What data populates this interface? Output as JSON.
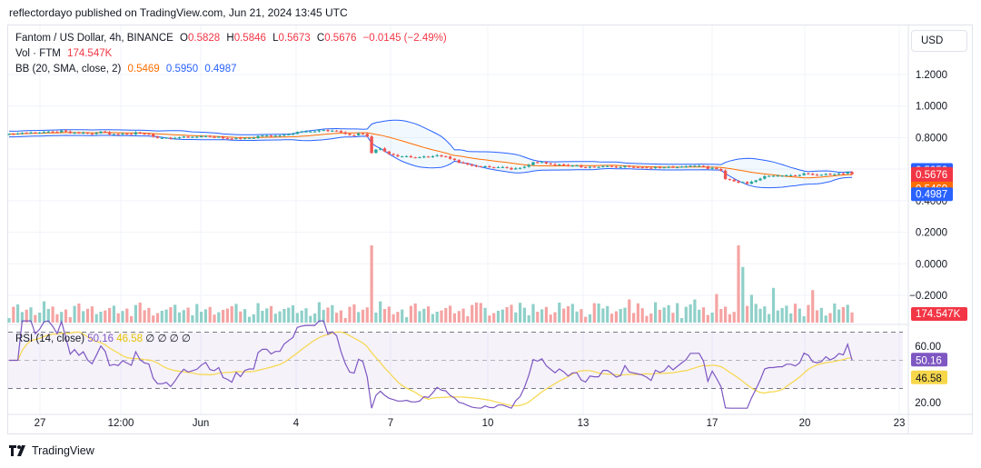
{
  "header": {
    "published_by": "reflectordayo published on TradingView.com, Jun 21, 2024 13:45 UTC"
  },
  "legend": {
    "symbol": "Fantom / US Dollar, 4h, BINANCE",
    "o_label": "O",
    "o_value": "0.5828",
    "h_label": "H",
    "h_value": "0.5846",
    "l_label": "L",
    "l_value": "0.5673",
    "c_label": "C",
    "c_value": "0.5676",
    "change": "−0.0145 (−2.49%)",
    "vol_label": "Vol · FTM",
    "vol_value": "174.547K",
    "bb_label": "BB (20, SMA, close, 2)",
    "bb_basis": "0.5469",
    "bb_upper": "0.5950",
    "bb_lower": "0.4987",
    "rsi_label": "RSI (14, close)",
    "rsi_value": "50.16",
    "rsi_ma": "46.58",
    "rsi_extra": "∅ ∅ ∅ ∅"
  },
  "toolbar": {
    "currency_button": "USD"
  },
  "brand": {
    "name": "TradingView"
  },
  "colors": {
    "up": "#26a69a",
    "down": "#ef5350",
    "bb_band": "#2962ff",
    "bb_basis": "#ff6d00",
    "rsi": "#7e57c2",
    "rsi_ma": "#f7d74a",
    "vol_up": "#8fd0c9",
    "vol_down": "#f5a3a3"
  },
  "chart_data": {
    "type": "candlestick",
    "symbol": "FTMUSD",
    "timeframe": "4h",
    "price_axis": {
      "ticks": [
        "1.2000",
        "1.0000",
        "0.8000",
        "0.6000",
        "0.4000",
        "0.2000",
        "0.0000",
        "−0.2000"
      ],
      "ylim": [
        -0.3,
        1.35
      ]
    },
    "time_axis": {
      "tick_labels": [
        "27",
        "12:00",
        "Jun",
        "4",
        "7",
        "10",
        "13",
        "17",
        "20",
        "23"
      ]
    },
    "price_labels": {
      "bb_upper": "0.5950",
      "last_price": "0.5676",
      "countdown": "02:14:09",
      "bb_basis": "0.5469",
      "bb_lower": "0.4987",
      "volume": "174.547K"
    },
    "close": [
      0.823,
      0.822,
      0.825,
      0.83,
      0.829,
      0.832,
      0.829,
      0.831,
      0.835,
      0.838,
      0.836,
      0.834,
      0.845,
      0.838,
      0.828,
      0.832,
      0.828,
      0.831,
      0.825,
      0.822,
      0.829,
      0.838,
      0.834,
      0.821,
      0.822,
      0.821,
      0.825,
      0.823,
      0.821,
      0.833,
      0.826,
      0.823,
      0.822,
      0.806,
      0.798,
      0.798,
      0.799,
      0.793,
      0.797,
      0.802,
      0.806,
      0.803,
      0.804,
      0.805,
      0.808,
      0.81,
      0.804,
      0.803,
      0.805,
      0.796,
      0.794,
      0.791,
      0.797,
      0.793,
      0.797,
      0.798,
      0.798,
      0.81,
      0.813,
      0.813,
      0.81,
      0.812,
      0.812,
      0.818,
      0.821,
      0.824,
      0.836,
      0.838,
      0.839,
      0.839,
      0.839,
      0.846,
      0.848,
      0.841,
      0.844,
      0.842,
      0.833,
      0.824,
      0.816,
      0.815,
      0.826,
      0.824,
      0.807,
      0.703,
      0.724,
      0.731,
      0.712,
      0.696,
      0.689,
      0.681,
      0.681,
      0.682,
      0.675,
      0.674,
      0.675,
      0.68,
      0.677,
      0.682,
      0.688,
      0.681,
      0.679,
      0.666,
      0.658,
      0.642,
      0.638,
      0.629,
      0.621,
      0.618,
      0.616,
      0.618,
      0.612,
      0.611,
      0.613,
      0.613,
      0.608,
      0.599,
      0.605,
      0.608,
      0.615,
      0.626,
      0.644,
      0.642,
      0.645,
      0.636,
      0.631,
      0.626,
      0.63,
      0.626,
      0.62,
      0.623,
      0.623,
      0.613,
      0.61,
      0.615,
      0.614,
      0.614,
      0.619,
      0.619,
      0.616,
      0.612,
      0.613,
      0.62,
      0.614,
      0.613,
      0.612,
      0.611,
      0.609,
      0.606,
      0.612,
      0.61,
      0.611,
      0.614,
      0.611,
      0.613,
      0.615,
      0.617,
      0.621,
      0.621,
      0.621,
      0.617,
      0.602,
      0.608,
      0.601,
      0.591,
      0.537,
      0.533,
      0.523,
      0.515,
      0.518,
      0.508,
      0.52,
      0.529,
      0.54,
      0.555,
      0.557,
      0.557,
      0.558,
      0.558,
      0.561,
      0.561,
      0.559,
      0.562,
      0.573,
      0.571,
      0.564,
      0.563,
      0.564,
      0.569,
      0.566,
      0.568,
      0.572,
      0.571,
      0.582,
      0.568
    ],
    "bollinger_bands": {
      "period": 20,
      "upper_last": 0.595,
      "basis_last": 0.5469,
      "lower_last": 0.4987
    },
    "volume_last": "174.547K",
    "rsi": {
      "period": 14,
      "last": 50.16,
      "ma_last": 46.58,
      "ticks": [
        60.0,
        20.0
      ],
      "ylim": [
        14,
        80
      ],
      "bands": [
        70,
        30
      ]
    }
  }
}
